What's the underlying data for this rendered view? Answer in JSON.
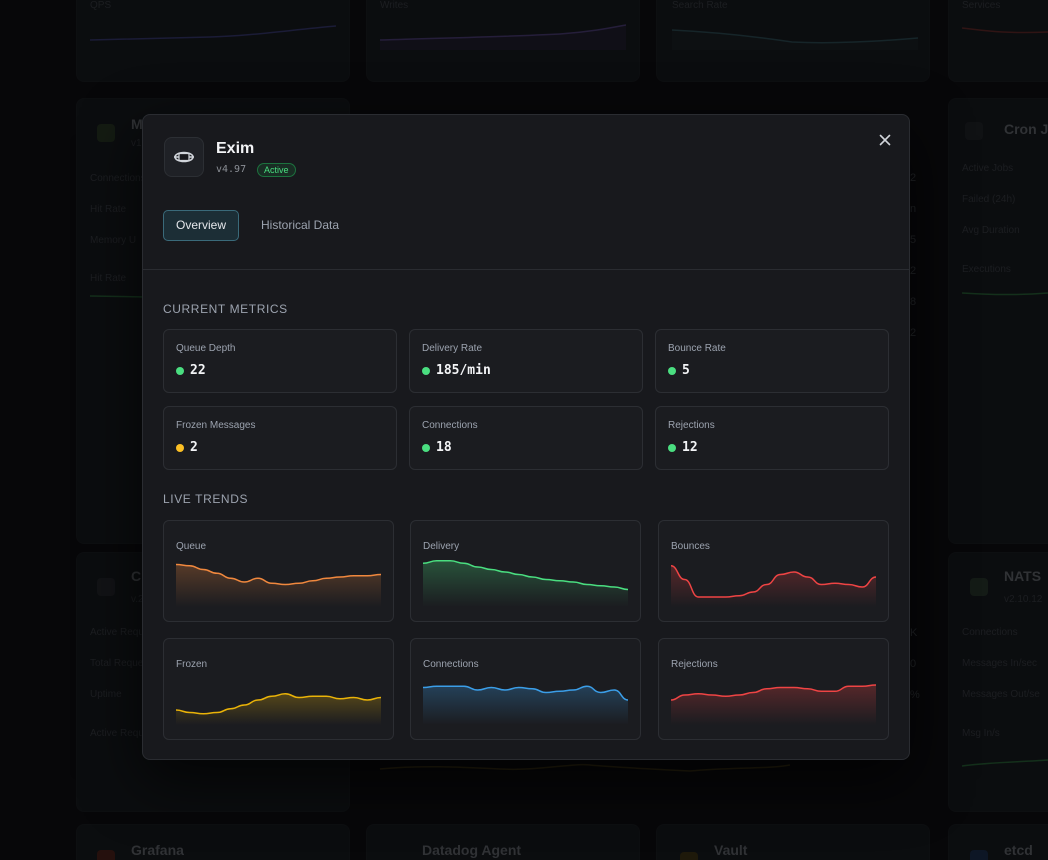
{
  "background": {
    "top_row_labels": [
      "QPS",
      "Writes",
      "Search Rate",
      "Services"
    ],
    "cron": {
      "title": "Cron J",
      "rows": [
        "Active Jobs",
        "Failed (24h)",
        "Avg Duration",
        "Executions"
      ]
    },
    "left_mid": {
      "title": "M",
      "version": "v1",
      "rows": [
        "Connections",
        "Hit Rate",
        "Memory U",
        "Hit Rate"
      ]
    },
    "left_low": {
      "title": "C",
      "version": "v.2",
      "rows": [
        "Active Requ",
        "Total Reque",
        "Uptime",
        "Active Requ"
      ]
    },
    "nats": {
      "title": "NATS",
      "version": "v2.10.12",
      "rows": [
        "Connections",
        "Messages In/sec",
        "Messages Out/se",
        "Msg In/s"
      ]
    },
    "right_values": [
      "2",
      "n",
      "5",
      "2",
      "8",
      "2"
    ],
    "right_values_low": [
      "K",
      "0",
      "%"
    ],
    "bottom_row_titles": [
      "Grafana",
      "Datadog Agent",
      "Vault",
      "etcd"
    ]
  },
  "modal": {
    "title": "Exim",
    "version": "v4.97",
    "status_badge": "Active",
    "tabs": [
      {
        "label": "Overview",
        "active": true
      },
      {
        "label": "Historical Data",
        "active": false
      }
    ],
    "current_metrics_title": "CURRENT METRICS",
    "metrics": [
      {
        "label": "Queue Depth",
        "value": "22",
        "status_color": "#4ade80"
      },
      {
        "label": "Delivery Rate",
        "value": "185/min",
        "status_color": "#4ade80"
      },
      {
        "label": "Bounce Rate",
        "value": "5",
        "status_color": "#4ade80"
      },
      {
        "label": "Frozen Messages",
        "value": "2",
        "status_color": "#fbbf24"
      },
      {
        "label": "Connections",
        "value": "18",
        "status_color": "#4ade80"
      },
      {
        "label": "Rejections",
        "value": "12",
        "status_color": "#4ade80"
      }
    ],
    "live_trends_title": "LIVE TRENDS",
    "trends": [
      {
        "label": "Queue",
        "color": "#f0883e",
        "values": [
          34,
          33,
          30,
          27,
          23,
          20,
          23,
          19,
          18,
          19,
          21,
          23,
          24,
          25,
          25,
          26
        ]
      },
      {
        "label": "Delivery",
        "color": "#4ade80",
        "values": [
          35,
          37,
          37,
          35,
          32,
          30,
          28,
          26,
          24,
          22,
          21,
          20,
          18,
          17,
          16,
          14
        ]
      },
      {
        "label": "Bounces",
        "color": "#ef4444",
        "values": [
          33,
          22,
          8,
          8,
          8,
          9,
          12,
          18,
          26,
          28,
          24,
          18,
          19,
          18,
          16,
          24
        ]
      },
      {
        "label": "Frozen",
        "color": "#eab308",
        "values": [
          12,
          10,
          9,
          10,
          13,
          16,
          20,
          23,
          25,
          22,
          23,
          23,
          21,
          22,
          20,
          22
        ]
      },
      {
        "label": "Connections",
        "color": "#3b9ee8",
        "values": [
          30,
          31,
          31,
          31,
          28,
          30,
          28,
          30,
          29,
          26,
          27,
          28,
          31,
          26,
          28,
          20
        ]
      },
      {
        "label": "Rejections",
        "color": "#ef4444",
        "values": [
          20,
          24,
          25,
          24,
          23,
          24,
          26,
          29,
          30,
          30,
          29,
          27,
          27,
          31,
          31,
          32
        ]
      }
    ]
  }
}
